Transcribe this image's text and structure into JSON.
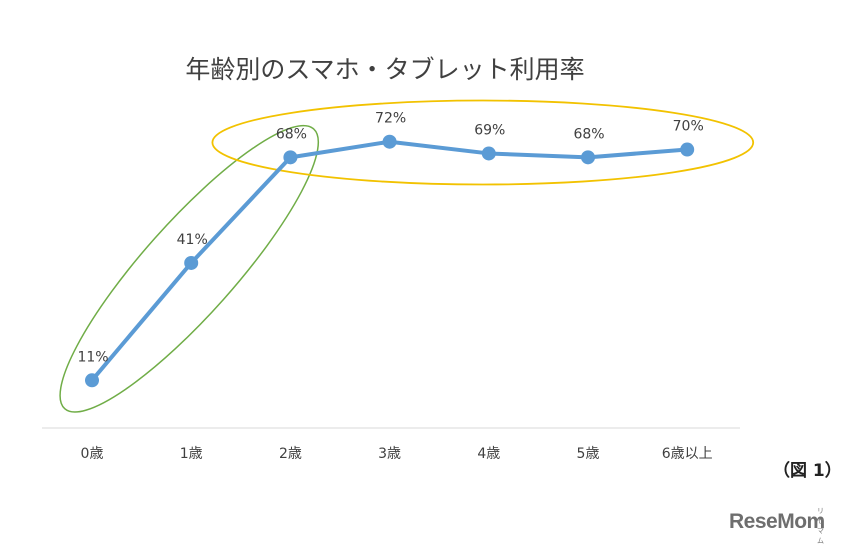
{
  "chart_data": {
    "type": "line",
    "title": "年齢別のスマホ・タブレット利用率",
    "categories": [
      "0歳",
      "1歳",
      "2歳",
      "3歳",
      "4歳",
      "5歳",
      "6歳以上"
    ],
    "series": [
      {
        "values": [
          11,
          41,
          68,
          72,
          69,
          68,
          70
        ],
        "color": "#5b9bd5"
      }
    ],
    "data_labels": [
      "11%",
      "41%",
      "68%",
      "72%",
      "69%",
      "68%",
      "70%"
    ],
    "unit": "%",
    "ylim": [
      0,
      80
    ],
    "grid": false,
    "legend": "none",
    "annotations": [
      {
        "shape": "ellipse",
        "color": "#70ad47",
        "covers": [
          "0歳",
          "1歳",
          "2歳"
        ]
      },
      {
        "shape": "ellipse",
        "color": "#f2c200",
        "covers": [
          "2歳",
          "3歳",
          "4歳",
          "5歳",
          "6歳以上"
        ]
      }
    ],
    "axis_color": "#d9d9d9"
  },
  "figure_label": "（図 1）",
  "brand": {
    "name": "ReseMom",
    "ruby": "リセマム"
  }
}
